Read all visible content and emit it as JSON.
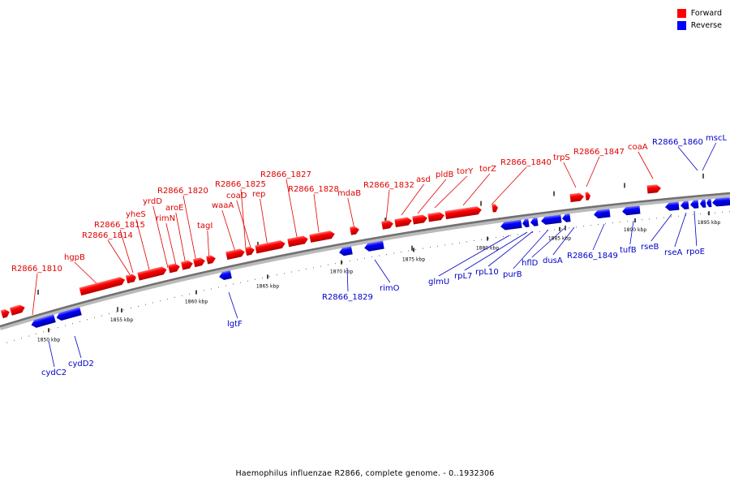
{
  "legend": {
    "forward_label": "Forward",
    "reverse_label": "Reverse",
    "forward_color": "#ff0000",
    "reverse_color": "#0000ff"
  },
  "caption": "Haemophilus influenzae R2866, complete genome. - 0..1932306",
  "ticks": [
    "1850 kbp",
    "1855 kbp",
    "1860 kbp",
    "1865 kbp",
    "1870 kbp",
    "1875 kbp",
    "1880 kbp",
    "1885 kbp",
    "1890 kbp",
    "1895 kbp"
  ],
  "forward_labels": [
    "R2866_1810",
    "hgpB",
    "R2866_1814",
    "R2866_1815",
    "yheS",
    "yrdD",
    "rimN",
    "aroE",
    "R2866_1820",
    "tagI",
    "waaA",
    "R2866_1825",
    "coaD",
    "rep",
    "R2866_1827",
    "R2866_1828",
    "mdaB",
    "R2866_1832",
    "asd",
    "pldB",
    "torY",
    "torZ",
    "R2866_1840",
    "trpS",
    "R2866_1847",
    "coaA"
  ],
  "reverse_labels": [
    "cydC2",
    "cydD2",
    "lgtF",
    "R2866_1829",
    "rimO",
    "glmU",
    "rpL7",
    "rpL10",
    "purB",
    "hflD",
    "dusA",
    "R2866_1849",
    "tufB",
    "rseB",
    "rseA",
    "rpoE",
    "R2866_1860",
    "mscL"
  ]
}
